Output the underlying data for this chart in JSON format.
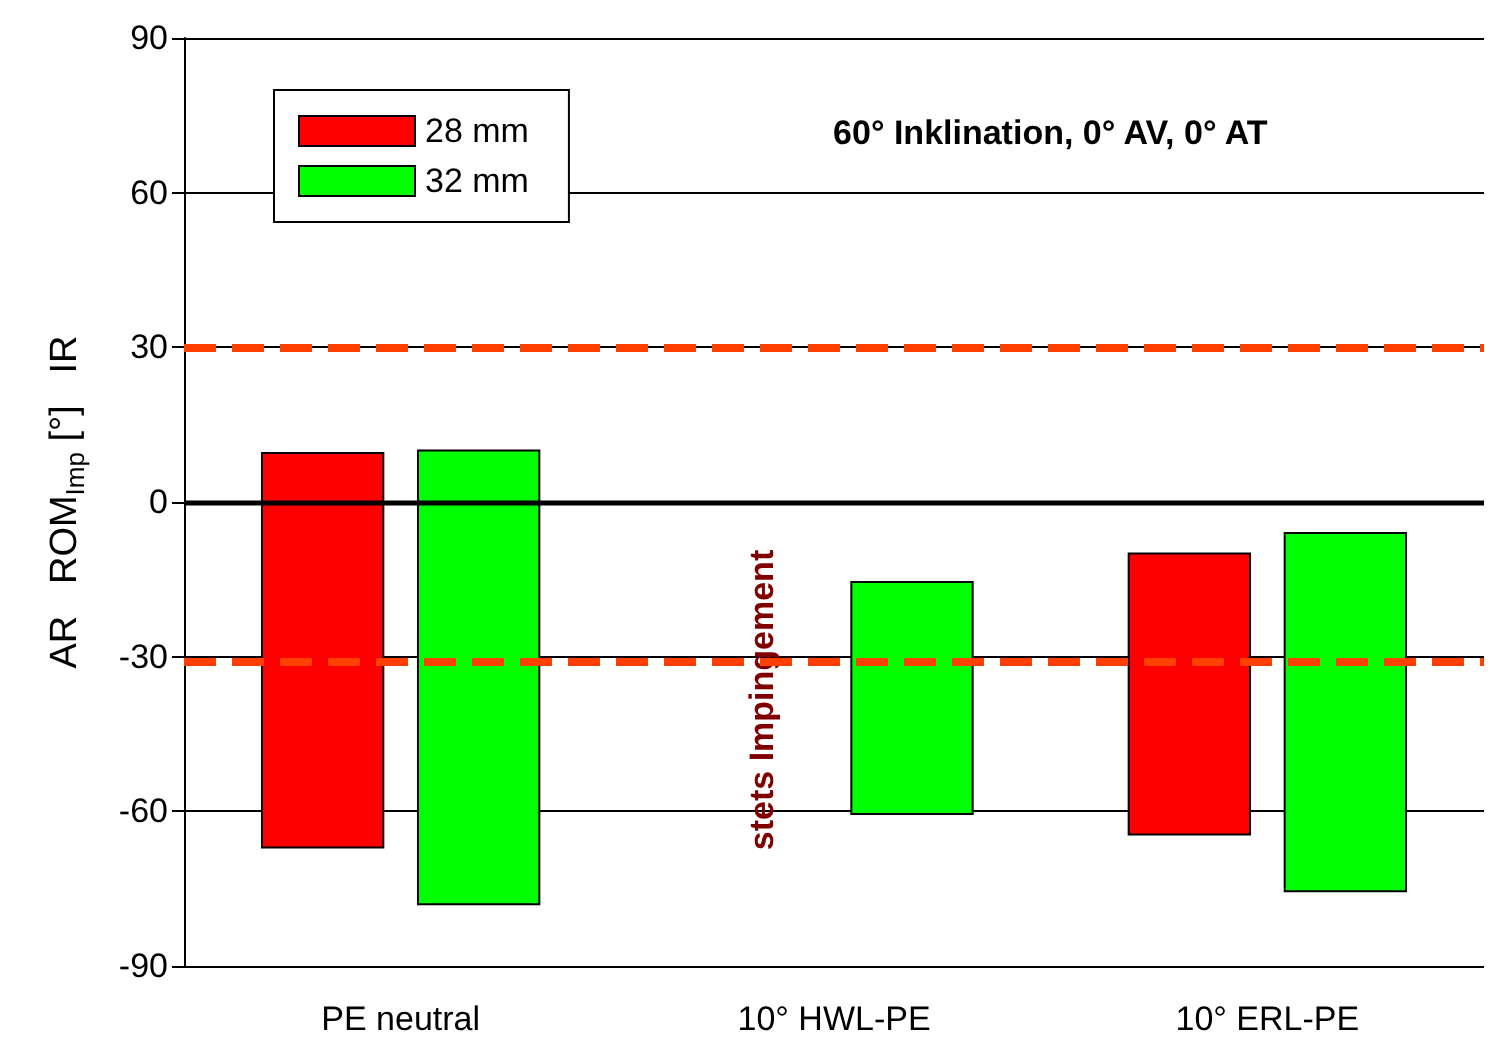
{
  "chart_data": {
    "type": "bar",
    "categories": [
      "PE neutral",
      "10° HWL-PE",
      "10° ERL-PE"
    ],
    "series": [
      {
        "name": "28 mm",
        "color": "#ff0000",
        "base": [
          -67,
          null,
          -64.5
        ],
        "values": [
          76.5,
          null,
          54.5
        ]
      },
      {
        "name": "32 mm",
        "color": "#00ff00",
        "base": [
          -78,
          -60.5,
          -75.5
        ],
        "values": [
          88,
          45,
          69.5
        ]
      }
    ],
    "ylabel": "AR   ROM$_{Imp}$ [°]   IR",
    "ylim": [
      -90,
      90
    ],
    "yticks": [
      -90,
      -60,
      -30,
      0,
      30,
      60,
      90
    ],
    "grid": "y",
    "legend": "top left",
    "ref_lines": [
      {
        "axis": "y",
        "value": 30,
        "color": "#ff4000",
        "line_style": "dashed"
      },
      {
        "axis": "y",
        "value": -31,
        "color": "#ff4000",
        "line_style": "dashed"
      },
      {
        "axis": "y",
        "value": 0,
        "color": "#000000",
        "line_style": "solid"
      }
    ],
    "annotations": [
      "60° Inklination, 0° AV, 0° AT",
      "stets Impingement"
    ]
  }
}
